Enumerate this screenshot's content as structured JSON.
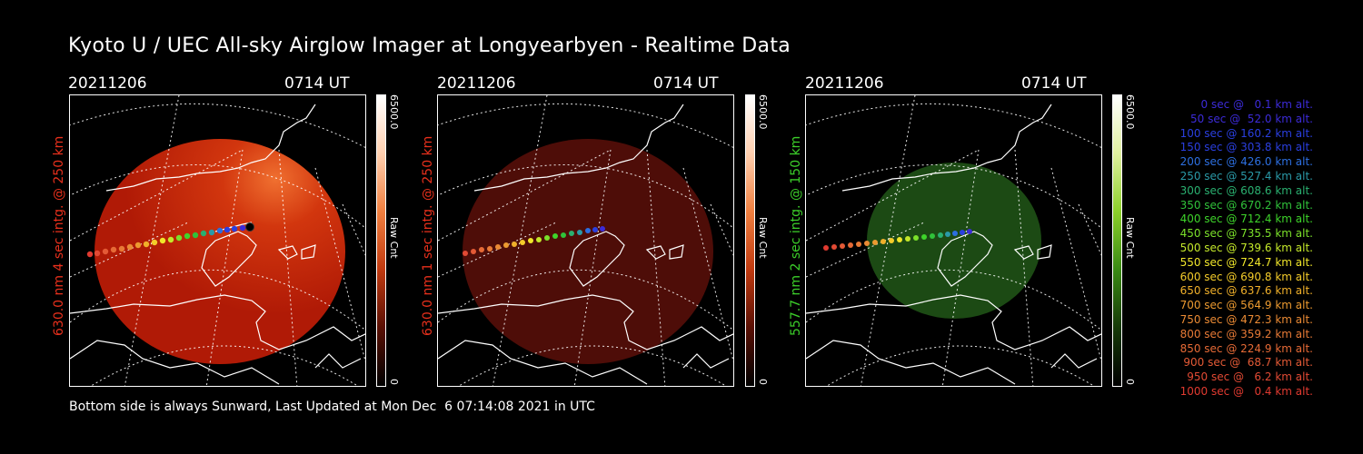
{
  "title": "Kyoto U / UEC All-sky Airglow Imager at Longyearbyen - Realtime Data",
  "footer": "Bottom side is always Sunward, Last Updated at Mon Dec  6 07:14:08 2021 in UTC",
  "panels": [
    {
      "date": "20211206",
      "time": "0714 UT",
      "ylabel": "630.0 nm 4 sec intg. @ 250 km",
      "ylabel_color": "#e8301c",
      "cbar_max": "6500.0",
      "cbar_min": "0",
      "cbar_label": "Raw Cnt",
      "image_color": "#c01f08"
    },
    {
      "date": "20211206",
      "time": "0714 UT",
      "ylabel": "630.0 nm 1 sec intg. @ 250 km",
      "ylabel_color": "#e8301c",
      "cbar_max": "6500.0",
      "cbar_min": "0",
      "cbar_label": "Raw Cnt",
      "image_color": "#4e0d08"
    },
    {
      "date": "20211206",
      "time": "0714 UT",
      "ylabel": "557.7 nm 2 sec intg. @ 150 km",
      "ylabel_color": "#3ccf2a",
      "cbar_max": "6500.0",
      "cbar_min": "0",
      "cbar_label": "Raw Cnt",
      "image_color": "#1c4a14"
    }
  ],
  "legend": [
    {
      "text": "0 sec @   0.1 km alt.",
      "color": "#3c2bd8"
    },
    {
      "text": "50 sec @  52.0 km alt.",
      "color": "#3c2bd8"
    },
    {
      "text": "100 sec @ 160.2 km alt.",
      "color": "#2a3fe0"
    },
    {
      "text": "150 sec @ 303.8 km alt.",
      "color": "#2a3fe0"
    },
    {
      "text": "200 sec @ 426.0 km alt.",
      "color": "#2d6fe0"
    },
    {
      "text": "250 sec @ 527.4 km alt.",
      "color": "#2a9aa8"
    },
    {
      "text": "300 sec @ 608.6 km alt.",
      "color": "#2ab070"
    },
    {
      "text": "350 sec @ 670.2 km alt.",
      "color": "#30c23a"
    },
    {
      "text": "400 sec @ 712.4 km alt.",
      "color": "#3ed42a"
    },
    {
      "text": "450 sec @ 735.5 km alt.",
      "color": "#7be02a"
    },
    {
      "text": "500 sec @ 739.6 km alt.",
      "color": "#c4e82a"
    },
    {
      "text": "550 sec @ 724.7 km alt.",
      "color": "#f0e62a"
    },
    {
      "text": "600 sec @ 690.8 km alt.",
      "color": "#f4cc2a"
    },
    {
      "text": "650 sec @ 637.6 km alt.",
      "color": "#f0b02a"
    },
    {
      "text": "700 sec @ 564.9 km alt.",
      "color": "#ec9a30"
    },
    {
      "text": "750 sec @ 472.3 km alt.",
      "color": "#ea8a34"
    },
    {
      "text": "800 sec @ 359.2 km alt.",
      "color": "#e87a36"
    },
    {
      "text": "850 sec @ 224.9 km alt.",
      "color": "#e66a36"
    },
    {
      "text": "900 sec @  68.7 km alt.",
      "color": "#e45a36"
    },
    {
      "text": "950 sec @   6.2 km alt.",
      "color": "#e24a34"
    },
    {
      "text": "1000 sec @   0.4 km alt.",
      "color": "#e03a30"
    }
  ]
}
